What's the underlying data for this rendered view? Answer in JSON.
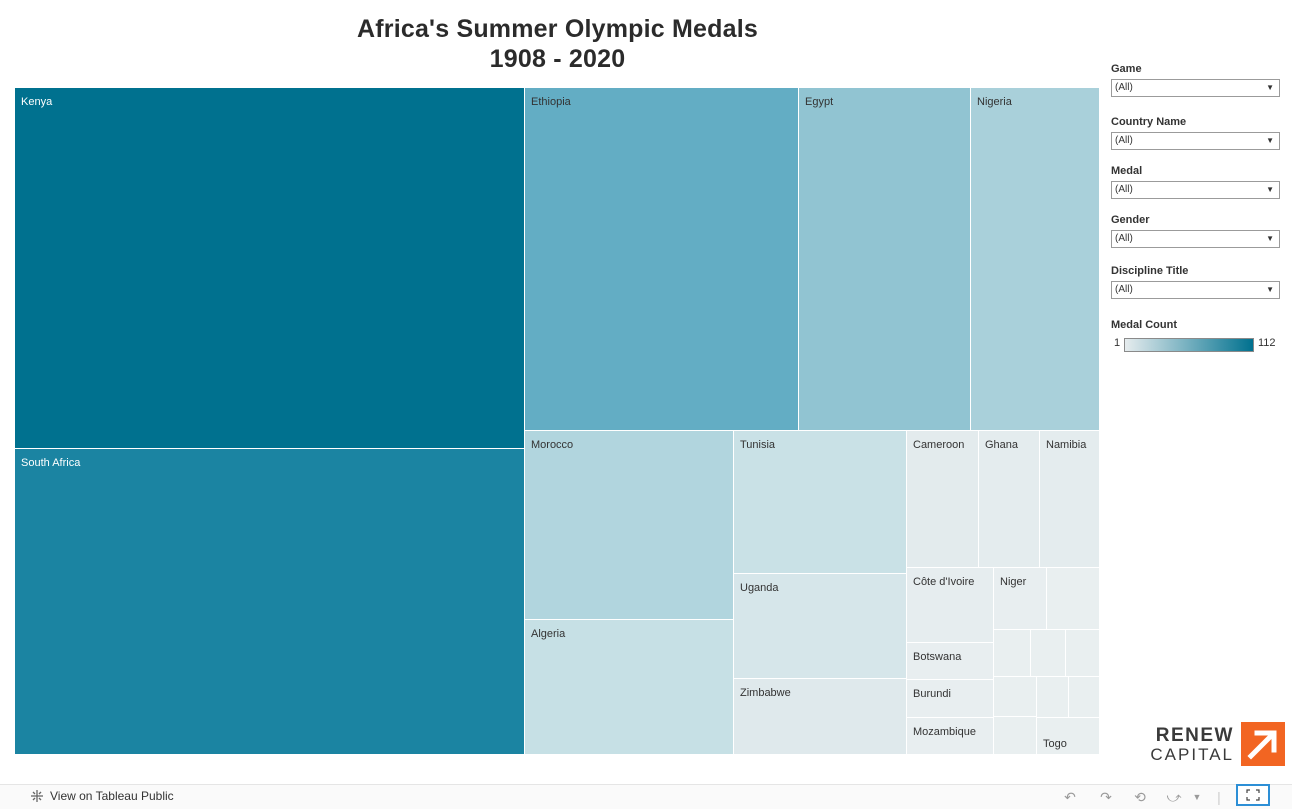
{
  "title": {
    "line1": "Africa's Summer Olympic Medals",
    "line2": "1908 - 2020"
  },
  "filters": [
    {
      "label": "Game",
      "value": "(All)"
    },
    {
      "label": "Country Name",
      "value": "(All)"
    },
    {
      "label": "Medal",
      "value": "(All)"
    },
    {
      "label": "Gender",
      "value": "(All)"
    },
    {
      "label": "Discipline Title",
      "value": "(All)"
    }
  ],
  "legend": {
    "title": "Medal Count",
    "min": "1",
    "max": "112",
    "color_low": "#e6ecee",
    "color_high": "#00718f"
  },
  "logo": {
    "line1": "RENEW",
    "line2": "CAPITAL",
    "color": "#f26522"
  },
  "footer": {
    "view_link": "View on Tableau Public"
  },
  "icons": [
    "undo-icon",
    "redo-icon",
    "revert-icon",
    "share-icon",
    "fullscreen-icon",
    "tableau-icon"
  ],
  "chart_data": {
    "type": "treemap",
    "title": "Africa's Summer Olympic Medals 1908 - 2020",
    "value_label": "Medal Count",
    "color_range": [
      1,
      112
    ],
    "countries": [
      {
        "name": "Kenya",
        "value": 112,
        "color": "#00718f"
      },
      {
        "name": "South Africa",
        "value": 94,
        "color": "#1b84a2"
      },
      {
        "name": "Ethiopia",
        "value": 58,
        "color": "#63adc4"
      },
      {
        "name": "Egypt",
        "value": 38,
        "color": "#91c4d2"
      },
      {
        "name": "Nigeria",
        "value": 28,
        "color": "#a9d0da"
      },
      {
        "name": "Morocco",
        "value": 24,
        "color": "#b1d5de"
      },
      {
        "name": "Algeria",
        "value": 17,
        "color": "#c6e0e5"
      },
      {
        "name": "Tunisia",
        "value": 15,
        "color": "#c9e1e6"
      },
      {
        "name": "Uganda",
        "value": 11,
        "color": "#d6e6ea"
      },
      {
        "name": "Zimbabwe",
        "value": 8,
        "color": "#dfe9ec"
      },
      {
        "name": "Cameroon",
        "value": 6,
        "color": "#e3ebed"
      },
      {
        "name": "Ghana",
        "value": 5,
        "color": "#e4ecee"
      },
      {
        "name": "Namibia",
        "value": 5,
        "color": "#e4ecee"
      },
      {
        "name": "Côte d'Ivoire",
        "value": 4,
        "color": "#e6edef"
      },
      {
        "name": "Niger",
        "value": 2,
        "color": "#e8eef0"
      },
      {
        "name": "Botswana",
        "value": 2,
        "color": "#e8eef0"
      },
      {
        "name": "Burundi",
        "value": 2,
        "color": "#e8eef0"
      },
      {
        "name": "Mozambique",
        "value": 2,
        "color": "#e8eef0"
      },
      {
        "name": "Togo",
        "value": 1,
        "color": "#e9eff0"
      },
      {
        "name": "",
        "value": 1,
        "color": "#e9eff0"
      },
      {
        "name": "",
        "value": 1,
        "color": "#e9eff0"
      },
      {
        "name": "",
        "value": 1,
        "color": "#e9eff0"
      },
      {
        "name": "",
        "value": 1,
        "color": "#e9eff0"
      },
      {
        "name": "",
        "value": 1,
        "color": "#e9eff0"
      },
      {
        "name": "",
        "value": 1,
        "color": "#e9eff0"
      },
      {
        "name": "",
        "value": 1,
        "color": "#e9eff0"
      },
      {
        "name": "",
        "value": 1,
        "color": "#e9eff0"
      }
    ]
  }
}
